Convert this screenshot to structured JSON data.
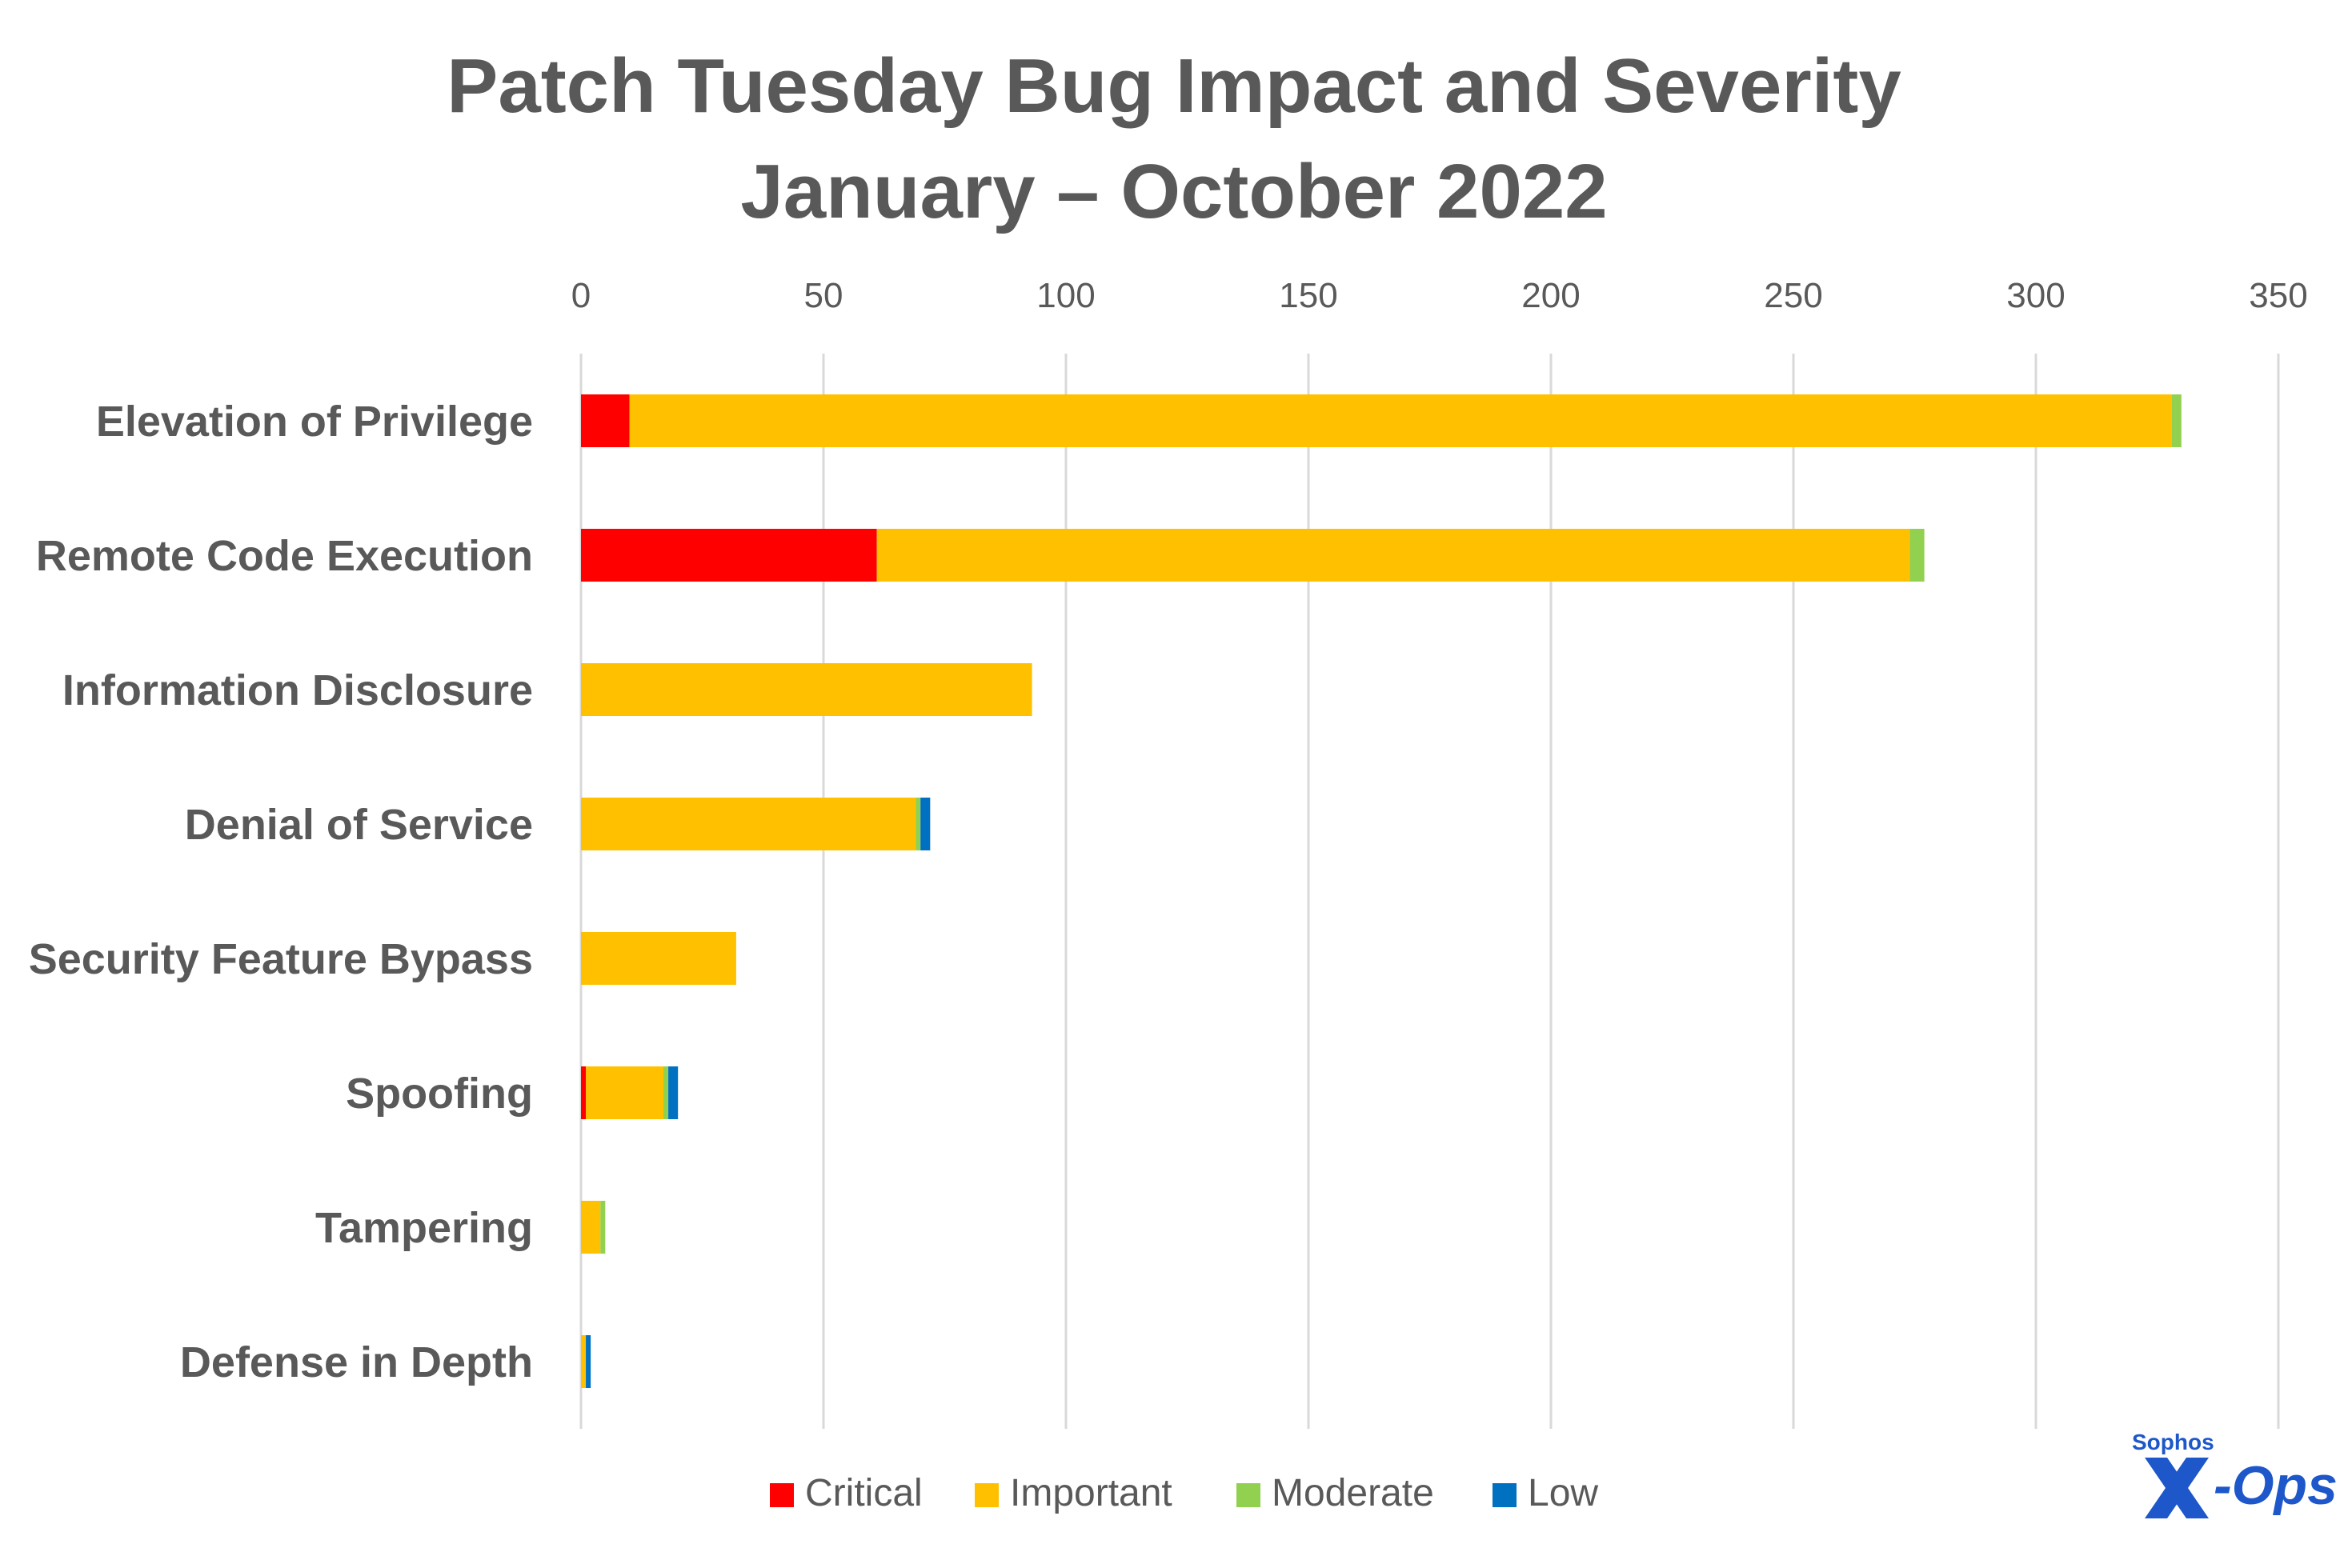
{
  "chart_data": {
    "type": "bar",
    "orientation": "horizontal",
    "stacked": true,
    "title": "Patch Tuesday Bug Impact and Severity",
    "subtitle": "January – October 2022",
    "categories": [
      "Elevation of Privilege",
      "Remote Code Execution",
      "Information Disclosure",
      "Denial of Service",
      "Security Feature Bypass",
      "Spoofing",
      "Tampering",
      "Defense in Depth"
    ],
    "series": [
      {
        "name": "Critical",
        "color": "#ff0000",
        "values": [
          10,
          61,
          0,
          0,
          0,
          1,
          0,
          0
        ]
      },
      {
        "name": "Important",
        "color": "#ffc000",
        "values": [
          318,
          213,
          93,
          69,
          32,
          16,
          4,
          1
        ]
      },
      {
        "name": "Moderate",
        "color": "#92d050",
        "values": [
          2,
          3,
          0,
          1,
          0,
          1,
          1,
          0
        ]
      },
      {
        "name": "Low",
        "color": "#0070c0",
        "values": [
          0,
          0,
          0,
          2,
          0,
          2,
          0,
          1
        ]
      }
    ],
    "xlim": [
      0,
      350
    ],
    "x_ticks": [
      0,
      50,
      100,
      150,
      200,
      250,
      300,
      350
    ],
    "x_axis_position": "top",
    "grid": "vertical",
    "legend": "bottom"
  },
  "logo": {
    "brand": "Sophos",
    "product": "X-Ops",
    "color": "#1d57c9"
  }
}
